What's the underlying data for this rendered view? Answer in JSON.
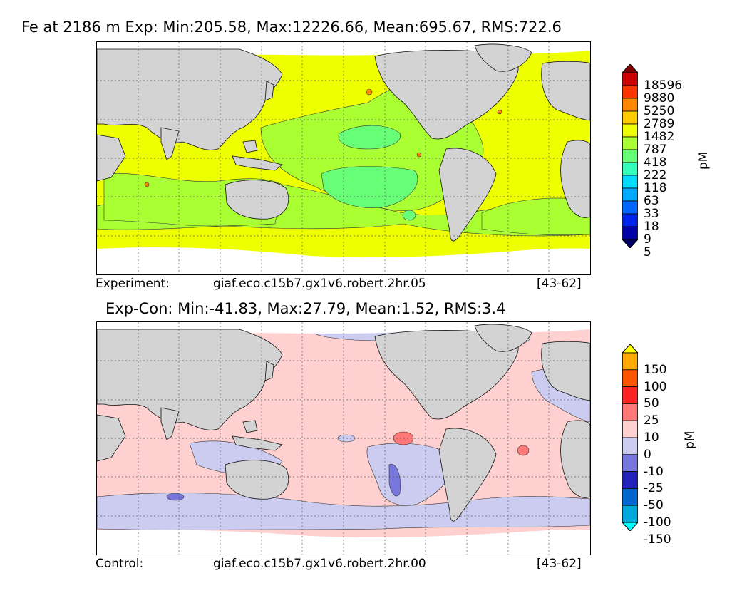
{
  "panel_top": {
    "title": "Fe at 2186 m Exp: Min:205.58, Max:12226.66, Mean:695.67, RMS:722.6",
    "footer_left": "Experiment:",
    "footer_center": "giaf.eco.c15b7.gx1v6.robert.2hr.05",
    "footer_right": "[43-62]",
    "colorbar": {
      "unit": "pM",
      "levels": [
        "18596",
        "9880",
        "5250",
        "2789",
        "1482",
        "787",
        "418",
        "222",
        "118",
        "63",
        "33",
        "18",
        "9",
        "5"
      ],
      "colors": [
        "#800000",
        "#cc0000",
        "#ff3300",
        "#ff8800",
        "#ffcc00",
        "#eeff00",
        "#aaff33",
        "#66ff77",
        "#33ffbb",
        "#00ddff",
        "#00aaff",
        "#0066ff",
        "#0022ee",
        "#0000aa",
        "#000066"
      ]
    },
    "map_colors": {
      "land": "#d3d3d3",
      "ocean_high": "#eeff00",
      "ocean_mid": "#aaff33",
      "ocean_low": "#66ff77",
      "missing": "#ffffff"
    }
  },
  "panel_bottom": {
    "title": "Exp-Con: Min:-41.83, Max:27.79, Mean:1.52, RMS:3.4",
    "footer_left": "Control:",
    "footer_center": "giaf.eco.c15b7.gx1v6.robert.2hr.00",
    "footer_right": "[43-62]",
    "colorbar": {
      "unit": "pM",
      "levels": [
        "150",
        "100",
        "50",
        "25",
        "10",
        "0",
        "-10",
        "-25",
        "-50",
        "-100",
        "-150"
      ],
      "colors": [
        "#ffff00",
        "#ffaa00",
        "#ff5500",
        "#ff2222",
        "#ff7777",
        "#ffd0d0",
        "#ccccf0",
        "#7777dd",
        "#2222bb",
        "#0066cc",
        "#00aadd",
        "#00ffff"
      ]
    },
    "map_colors": {
      "land": "#d3d3d3",
      "ocean_pos": "#ffd0d0",
      "ocean_neg": "#ccccf0",
      "strong_pos": "#ff7777",
      "strong_neg": "#7777dd",
      "missing": "#ffffff"
    }
  }
}
